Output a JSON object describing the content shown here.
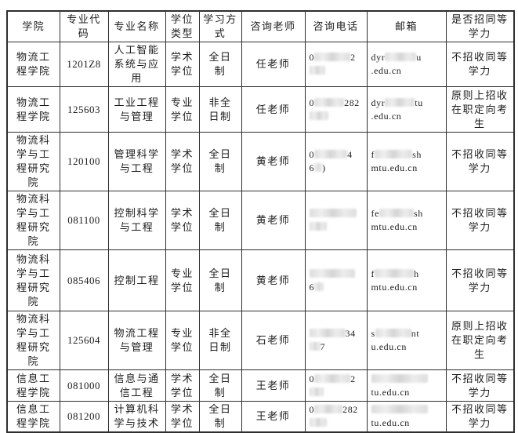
{
  "table": {
    "columns": [
      {
        "label": "学院"
      },
      {
        "label": "专业代码"
      },
      {
        "label": "专业名称"
      },
      {
        "label": "学位类型"
      },
      {
        "label": "学习方式"
      },
      {
        "label": "咨询老师"
      },
      {
        "label": "咨询电话"
      },
      {
        "label": "邮箱"
      },
      {
        "label": "是否招同等学力"
      }
    ],
    "rows": [
      {
        "college": "物流工程学院",
        "code": "1201Z8",
        "major": "人工智能系统与应用",
        "degree_type": "学术学位",
        "study_mode": "全日制",
        "teacher": "任老师",
        "phone": [
          [
            "0",
            {
              "b": 46
            },
            "2"
          ],
          [
            {
              "b": 20
            }
          ]
        ],
        "email": [
          [
            "dyr",
            {
              "b": 40
            },
            "u"
          ],
          [
            ".edu.cn"
          ]
        ],
        "equivalent": "不招收同等学力"
      },
      {
        "college": "物流工程学院",
        "code": "125603",
        "major": "工业工程与管理",
        "degree_type": "专业学位",
        "study_mode": "非全日制",
        "teacher": "任老师",
        "phone": [
          [
            "0",
            {
              "b": 38
            },
            "282"
          ],
          [
            {
              "b": 24
            }
          ]
        ],
        "email": [
          [
            "dyr",
            {
              "b": 38
            },
            "tu"
          ],
          [
            ".edu.cn"
          ]
        ],
        "equivalent": "原则上招收在职定向考生"
      },
      {
        "college": "物流科学与工程研究院",
        "code": "120100",
        "major": "管理科学与工程",
        "degree_type": "学术学位",
        "study_mode": "全日制",
        "teacher": "黄老师",
        "phone": [
          [
            "0",
            {
              "b": 42
            },
            "4"
          ],
          [
            "6",
            {
              "b": 10
            },
            ")"
          ]
        ],
        "email": [
          [
            "f",
            {
              "b": 48
            },
            "sh"
          ],
          [
            "mtu.edu.cn"
          ]
        ],
        "equivalent": "不招收同等学力"
      },
      {
        "college": "物流科学与工程研究院",
        "code": "081100",
        "major": "控制科学与工程",
        "degree_type": "学术学位",
        "study_mode": "全日制",
        "teacher": "黄老师",
        "phone": [
          [
            {
              "b": 60
            }
          ],
          [
            {
              "b": 22
            }
          ]
        ],
        "email": [
          [
            "fe",
            {
              "b": 44
            },
            "sh"
          ],
          [
            "mtu.edu.cn"
          ]
        ],
        "equivalent": "不招收同等学力"
      },
      {
        "college": "物流科学与工程研究院",
        "code": "085406",
        "major": "控制工程",
        "degree_type": "专业学位",
        "study_mode": "全日制",
        "teacher": "黄老师",
        "phone": [
          [
            {
              "b": 58
            }
          ],
          [
            "6",
            {
              "b": 12
            }
          ]
        ],
        "email": [
          [
            "f",
            {
              "b": 50
            },
            "h"
          ],
          [
            "mtu.edu.cn"
          ]
        ],
        "equivalent": "不招收同等学力"
      },
      {
        "college": "物流科学与工程研究院",
        "code": "125604",
        "major": "物流工程与管理",
        "degree_type": "专业学位",
        "study_mode": "非全日制",
        "teacher": "石老师",
        "phone": [
          [
            {
              "b": 46
            },
            "34"
          ],
          [
            {
              "b": 14
            },
            "7"
          ]
        ],
        "email": [
          [
            "s",
            {
              "b": 46
            },
            "nt"
          ],
          [
            "u.edu.cn"
          ]
        ],
        "equivalent": "原则上招收在职定向考生"
      },
      {
        "college": "信息工程学院",
        "code": "081000",
        "major": "信息与通信工程",
        "degree_type": "学术学位",
        "study_mode": "全日制",
        "teacher": "王老师",
        "phone": [
          [
            "0",
            {
              "b": 46
            },
            "2"
          ],
          [
            {
              "b": 18
            }
          ]
        ],
        "email": [
          [
            {
              "b": 72
            }
          ],
          [
            "tu.edu.cn"
          ]
        ],
        "equivalent": "不招收同等学力"
      },
      {
        "college": "信息工程学院",
        "code": "081200",
        "major": "计算机科学与技术",
        "degree_type": "学术学位",
        "study_mode": "全日制",
        "teacher": "王老师",
        "phone": [
          [
            "0",
            {
              "b": 36
            },
            "282"
          ],
          [
            {
              "b": 22
            }
          ]
        ],
        "email": [
          [
            {
              "b": 72
            }
          ],
          [
            "tu.edu.cn"
          ]
        ],
        "equivalent": "不招收同等学力"
      }
    ]
  }
}
